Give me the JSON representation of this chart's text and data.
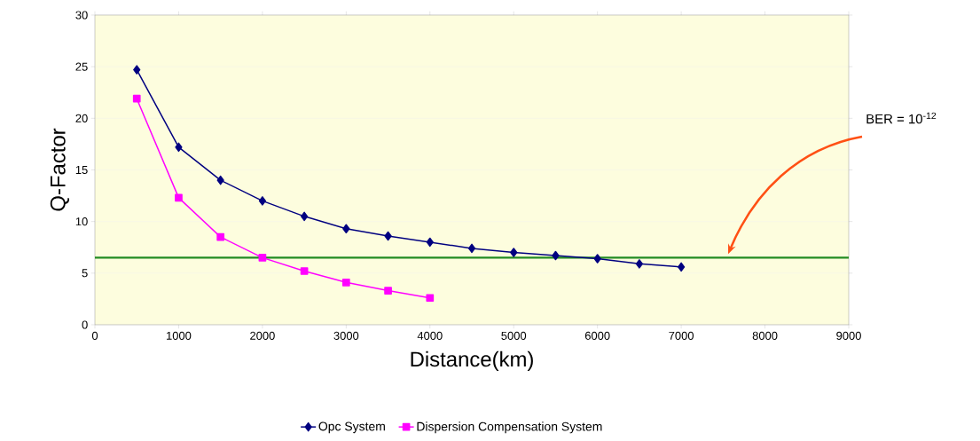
{
  "chart_data": {
    "type": "line",
    "xlabel": "Distance(km)",
    "ylabel": "Q-Factor",
    "xlim": [
      0,
      9000
    ],
    "xticks": [
      0,
      1000,
      2000,
      3000,
      4000,
      5000,
      6000,
      7000,
      8000,
      9000
    ],
    "ylim": [
      0,
      30
    ],
    "yticks": [
      0,
      5,
      10,
      15,
      20,
      25,
      30
    ],
    "grid": "y",
    "legend": "bottom",
    "series": [
      {
        "name": "Opc System",
        "color": "#000080",
        "marker": "diamond",
        "x": [
          500,
          1000,
          1500,
          2000,
          2500,
          3000,
          3500,
          4000,
          4500,
          5000,
          5500,
          6000,
          6500,
          7000
        ],
        "values": [
          24.7,
          17.2,
          14.0,
          12.0,
          10.5,
          9.3,
          8.6,
          8.0,
          7.4,
          7.0,
          6.7,
          6.4,
          5.9,
          5.6
        ]
      },
      {
        "name": "Dispersion Compensation System",
        "color": "#ff00ff",
        "marker": "square",
        "x": [
          500,
          1000,
          1500,
          2000,
          2500,
          3000,
          3500,
          4000
        ],
        "values": [
          21.9,
          12.3,
          8.5,
          6.5,
          5.2,
          4.1,
          3.3,
          2.6
        ]
      }
    ],
    "ref_lines": [
      {
        "axis": "y",
        "value": 6.5,
        "color": "#228b22"
      }
    ],
    "annotations": [
      "BER = 10$^{-12}$"
    ]
  }
}
